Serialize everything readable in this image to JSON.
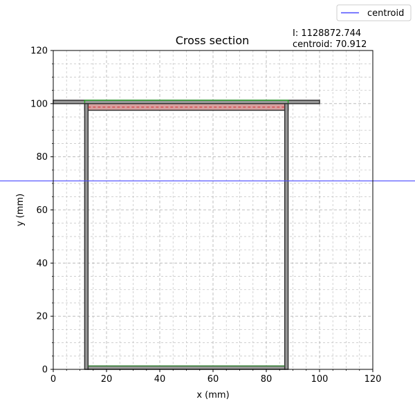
{
  "chart_data": {
    "type": "area",
    "title": "Cross section",
    "xlabel": "x (mm)",
    "ylabel": "y (mm)",
    "xlim": [
      0,
      120
    ],
    "ylim": [
      0,
      120
    ],
    "xticks": [
      0,
      20,
      40,
      60,
      80,
      100,
      120
    ],
    "yticks": [
      0,
      20,
      40,
      60,
      80,
      100,
      120
    ],
    "grid": true,
    "minor_grid": true,
    "info_lines": [
      "I: 1128872.744",
      "centroid: 70.912"
    ],
    "legend": {
      "placement": "top-right",
      "entries": [
        "centroid"
      ]
    },
    "centroid_y": 70.912,
    "series": [
      {
        "name": "centroid",
        "type": "hline",
        "y": 70.912,
        "color": "#4c4cff"
      }
    ],
    "members": [
      {
        "x": [
          0,
          100
        ],
        "y": [
          100,
          101.27
        ],
        "fill": "#999999",
        "edge": "#333333"
      },
      {
        "x": [
          11.8,
          88.2
        ],
        "y": [
          100,
          101.27
        ],
        "fill": "#999999",
        "edge": "#2ca02c"
      },
      {
        "x": [
          11.8,
          88.2
        ],
        "y": [
          97.5,
          100
        ],
        "fill": "#d8a0a0",
        "edge": "#333333"
      },
      {
        "x": [
          11.8,
          13.07
        ],
        "y": [
          0,
          100
        ],
        "fill": "#999999",
        "edge": "#333333"
      },
      {
        "x": [
          86.93,
          88.2
        ],
        "y": [
          0,
          100
        ],
        "fill": "#999999",
        "edge": "#333333"
      },
      {
        "x": [
          13.07,
          86.93
        ],
        "y": [
          0,
          1.27
        ],
        "fill": "#999999",
        "edge": "#333333"
      }
    ],
    "lines": [
      {
        "x": [
          13.07,
          86.93
        ],
        "y": [
          98.7,
          98.7
        ],
        "color": "#d62728",
        "dash": "4,3"
      },
      {
        "x": [
          13.07,
          86.93
        ],
        "y": [
          1.27,
          1.27
        ],
        "color": "#2ca02c",
        "dash": ""
      }
    ]
  }
}
